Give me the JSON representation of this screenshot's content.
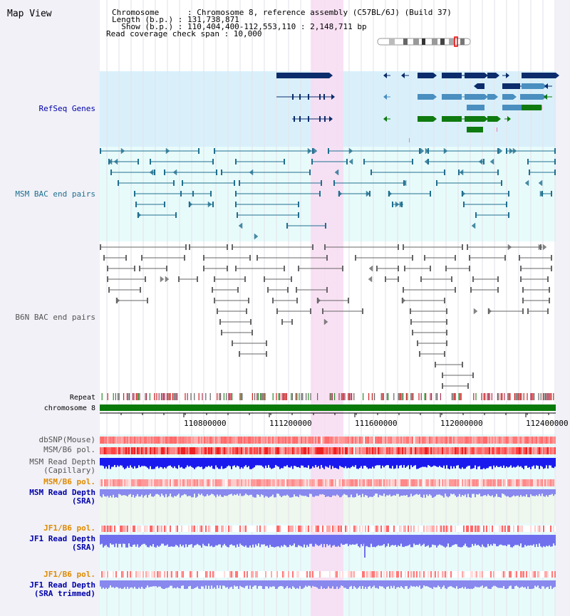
{
  "map_view": {
    "title": "Map View",
    "info_lines": [
      "Chromosome      : Chromosome 8, reference assembly (C57BL/6J) (Build 37)",
      "Length (b.p.) : 131,738,871",
      "  Show (b.p.) : 110,404,400-112,553,110 : 2,148,711 bp",
      "Read coverage check span : 10,000"
    ],
    "tracks": {
      "refseq": "RefSeq Genes",
      "msm_bac": "MSM BAC end pairs",
      "b6n_bac": "B6N BAC end pairs",
      "repeat": "Repeat",
      "chromosome": "chromosome 8"
    },
    "axis_ticks": [
      "110800000",
      "111200000",
      "111600000",
      "112000000",
      "112400000"
    ],
    "data_tracks": [
      {
        "lines": [
          "dbSNP(Mouse)"
        ],
        "color": "#555555"
      },
      {
        "lines": [
          "MSM/B6 pol."
        ],
        "color": "#555555"
      },
      {
        "lines": [
          "MSM Read Depth",
          "(Capillary)"
        ],
        "color": "#555555"
      },
      {
        "lines": [
          "MSM/B6 pol."
        ],
        "color": "#e08a00"
      },
      {
        "lines": [
          "MSM Read Depth",
          "(SRA)"
        ],
        "color": "#0000aa"
      },
      {
        "lines": [
          "JF1/B6 pol."
        ],
        "color": "#e08a00"
      },
      {
        "lines": [
          "JF1 Read Depth",
          "(SRA)"
        ],
        "color": "#0000aa"
      },
      {
        "lines": [
          "JF1/B6 pol."
        ],
        "color": "#e08a00"
      },
      {
        "lines": [
          "JF1 Read Depth",
          "(SRA trimmed)"
        ],
        "color": "#0000aa"
      }
    ]
  },
  "colors": {
    "refseq_bg": "#d9f0fb",
    "bac_bg": "#e8fbfb",
    "highlight": "#f8dcf2",
    "gene_dark": "#0c2c6b",
    "gene_mid": "#4a8fbf",
    "gene_green": "#0f7a0f",
    "msm_feature": "#1f6f8f",
    "b6n_feature": "#666666",
    "chromosome_bar": "#0a7a0a",
    "depth_blue": "#1a1aee",
    "depth_light": "#8888ee",
    "snp_red": "#ff6a6a"
  }
}
